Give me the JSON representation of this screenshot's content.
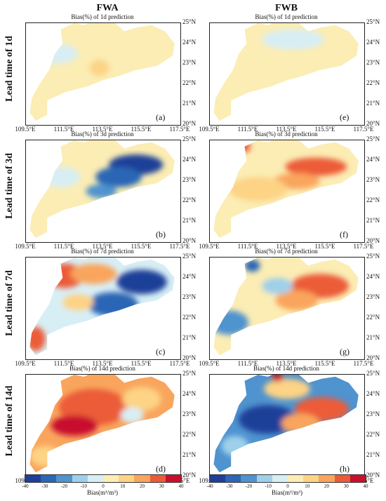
{
  "columns": [
    "FWA",
    "FWB"
  ],
  "rows": [
    "Lead time of 1d",
    "Lead time of 3d",
    "Lead time of 7d",
    "Lead time of 14d"
  ],
  "colors": {
    "neg40": "#1f3f98",
    "neg30": "#2c66b5",
    "neg20": "#4f93cf",
    "neg10": "#9fd0ea",
    "neg5": "#d8eef5",
    "pos5": "#fbedb4",
    "pos10": "#fdd385",
    "pos20": "#f9a55d",
    "pos30": "#ec5b37",
    "pos40": "#c8102e"
  },
  "chart_data": {
    "type": "heatmap",
    "x_ticks": [
      "109.5°E",
      "111.5°E",
      "113.5°E",
      "115.5°E",
      "117.5°E"
    ],
    "y_ticks": [
      "25°N",
      "24°N",
      "23°N",
      "22°N",
      "21°N",
      "20°N"
    ],
    "xlim": [
      109.5,
      117.5
    ],
    "ylim": [
      20,
      25
    ],
    "panels": [
      {
        "key": "a",
        "tag": "(a)",
        "title": "Bias(%) of 1d prediction",
        "model": "FWA",
        "lead": "1d",
        "base": "pos5",
        "patches": [
          [
            "neg5",
            111.0,
            23.5,
            1.2,
            0.5
          ],
          [
            "pos10",
            113.3,
            22.8,
            0.5,
            0.4
          ]
        ]
      },
      {
        "key": "e",
        "tag": "(e)",
        "title": "Bias(%) of 1d prediction",
        "model": "FWB",
        "lead": "1d",
        "base": "pos5",
        "patches": [
          [
            "neg5",
            113.8,
            24.2,
            1.6,
            0.5
          ]
        ]
      },
      {
        "key": "b",
        "tag": "(b)",
        "title": "Bias(%) of 3d prediction",
        "model": "FWA",
        "lead": "3d",
        "base": "pos5",
        "patches": [
          [
            "neg40",
            115.2,
            23.8,
            1.4,
            0.5
          ],
          [
            "neg30",
            114.3,
            23.2,
            1.2,
            0.5
          ],
          [
            "neg20",
            113.4,
            22.5,
            0.8,
            0.35
          ],
          [
            "neg5",
            111.3,
            23.2,
            1.0,
            0.5
          ]
        ]
      },
      {
        "key": "f",
        "tag": "(f)",
        "title": "Bias(%) of 3d prediction",
        "model": "FWB",
        "lead": "3d",
        "base": "pos5",
        "patches": [
          [
            "pos30",
            115.0,
            23.7,
            1.6,
            0.45
          ],
          [
            "pos20",
            114.0,
            23.0,
            1.2,
            0.4
          ],
          [
            "pos10",
            112.0,
            22.6,
            1.5,
            0.6
          ],
          [
            "pos30",
            111.3,
            24.7,
            0.3,
            0.3
          ]
        ]
      },
      {
        "key": "c",
        "tag": "(c)",
        "title": "Bias(%) of 7d prediction",
        "model": "FWA",
        "lead": "7d",
        "base": "neg5",
        "patches": [
          [
            "neg40",
            115.5,
            23.8,
            1.3,
            0.6
          ],
          [
            "neg30",
            114.0,
            22.7,
            1.3,
            0.6
          ],
          [
            "pos30",
            111.5,
            24.1,
            1.0,
            0.6
          ],
          [
            "pos20",
            113.0,
            24.2,
            1.2,
            0.5
          ],
          [
            "pos30",
            110.0,
            21.0,
            0.5,
            0.6
          ],
          [
            "pos10",
            112.2,
            22.8,
            0.8,
            0.4
          ]
        ]
      },
      {
        "key": "g",
        "tag": "(g)",
        "title": "Bias(%) of 7d prediction",
        "model": "FWB",
        "lead": "7d",
        "base": "pos5",
        "patches": [
          [
            "pos30",
            115.2,
            23.6,
            1.5,
            0.6
          ],
          [
            "pos20",
            114.0,
            22.9,
            1.1,
            0.5
          ],
          [
            "neg20",
            110.5,
            21.8,
            1.0,
            0.6
          ],
          [
            "neg30",
            111.7,
            24.6,
            0.4,
            0.3
          ],
          [
            "neg10",
            113.0,
            23.6,
            0.8,
            0.4
          ]
        ]
      },
      {
        "key": "d",
        "tag": "(d)",
        "title": "Bias(%) of 14d prediction",
        "model": "FWA",
        "lead": "14d",
        "base": "pos20",
        "patches": [
          [
            "pos30",
            113.0,
            23.4,
            1.8,
            0.9
          ],
          [
            "pos40",
            112.0,
            22.5,
            1.2,
            0.5
          ],
          [
            "pos10",
            115.5,
            23.8,
            1.0,
            0.6
          ],
          [
            "neg5",
            115.0,
            23.0,
            0.6,
            0.4
          ],
          [
            "pos10",
            110.5,
            21.0,
            0.8,
            0.5
          ]
        ]
      },
      {
        "key": "h",
        "tag": "(h)",
        "title": "Bias(%) of 14d prediction",
        "model": "FWB",
        "lead": "14d",
        "base": "neg20",
        "patches": [
          [
            "neg40",
            112.5,
            22.8,
            1.5,
            0.7
          ],
          [
            "pos30",
            115.3,
            23.3,
            1.4,
            0.6
          ],
          [
            "pos20",
            114.2,
            22.6,
            1.0,
            0.5
          ],
          [
            "pos10",
            113.5,
            24.3,
            1.2,
            0.5
          ],
          [
            "neg10",
            110.8,
            21.5,
            0.7,
            0.5
          ],
          [
            "pos40",
            113.0,
            24.9,
            0.3,
            0.25
          ]
        ]
      }
    ],
    "colorbar": {
      "ticks": [
        "-40",
        "-30",
        "-20",
        "-10",
        "0",
        "10",
        "20",
        "30",
        "40"
      ],
      "range": [
        -40,
        40
      ],
      "label": "Bias(m³/m³)"
    }
  }
}
